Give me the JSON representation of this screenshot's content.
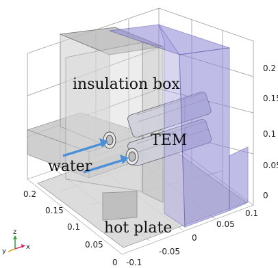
{
  "labels": {
    "insulation_box": "insulation box",
    "tem": "TEM",
    "water": "water",
    "hot_plate": "hot plate"
  },
  "z_ticks": [
    "0.2",
    "0.15",
    "0.1",
    "0.05",
    "0"
  ],
  "right_axis_ticks": [
    "0.1",
    "0.05",
    "0",
    "-0.05",
    "-0.1"
  ],
  "left_axis_ticks": [
    "0.2",
    "0.15",
    "0.1",
    "0.05",
    "0"
  ],
  "triad": {
    "y": "y",
    "z": "z",
    "x": "x"
  },
  "colors": {
    "box_blue": "#8c86d6",
    "box_gray": "#bdbdbd",
    "arrow_blue": "#4a90d9",
    "grid": "#9a9a9a"
  }
}
